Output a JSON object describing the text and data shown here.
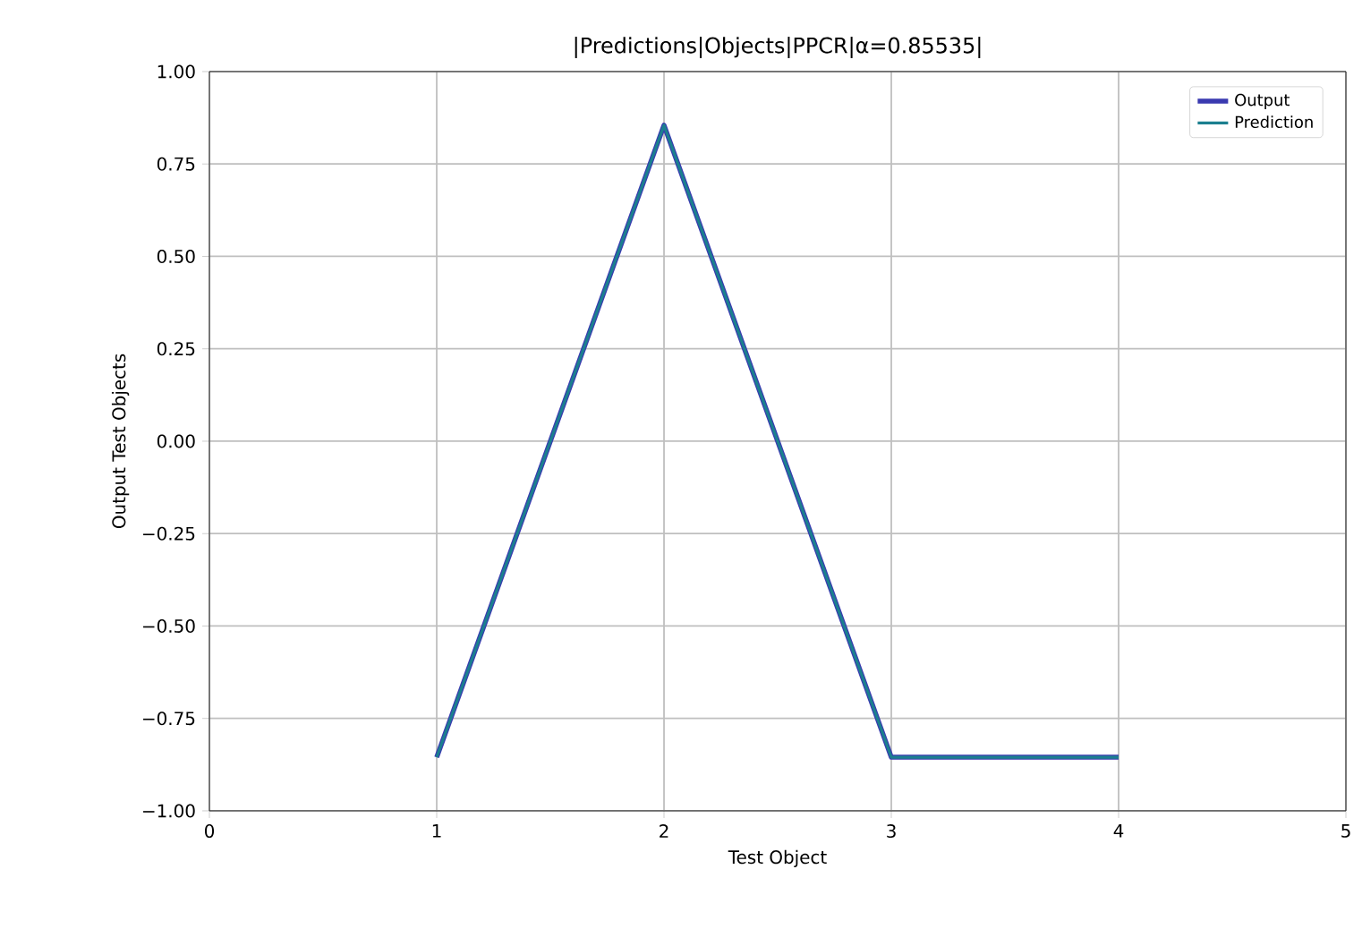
{
  "chart_data": {
    "type": "line",
    "title": "|Predictions|Objects|PPCR|α=0.85535|",
    "xlabel": "Test Object",
    "ylabel": "Output Test Objects",
    "x": [
      1,
      2,
      3,
      4
    ],
    "series": [
      {
        "name": "Output",
        "color": "#3a3ab0",
        "values": [
          -0.855,
          0.855,
          -0.855,
          -0.855
        ]
      },
      {
        "name": "Prediction",
        "color": "#1b7f8f",
        "values": [
          -0.855,
          0.855,
          -0.855,
          -0.855
        ]
      }
    ],
    "xlim": [
      0,
      5
    ],
    "xticks": [
      0,
      1,
      2,
      3,
      4,
      5
    ],
    "ylim": [
      -1,
      1
    ],
    "yticks": [
      {
        "value": -1,
        "label": "−1.00"
      },
      {
        "value": -0.75,
        "label": "−0.75"
      },
      {
        "value": -0.5,
        "label": "−0.50"
      },
      {
        "value": -0.25,
        "label": "−0.25"
      },
      {
        "value": 0,
        "label": "0.00"
      },
      {
        "value": 0.25,
        "label": "0.25"
      },
      {
        "value": 0.5,
        "label": "0.50"
      },
      {
        "value": 0.75,
        "label": "0.75"
      },
      {
        "value": 1,
        "label": "1.00"
      }
    ],
    "grid": true,
    "legend": "top right"
  }
}
